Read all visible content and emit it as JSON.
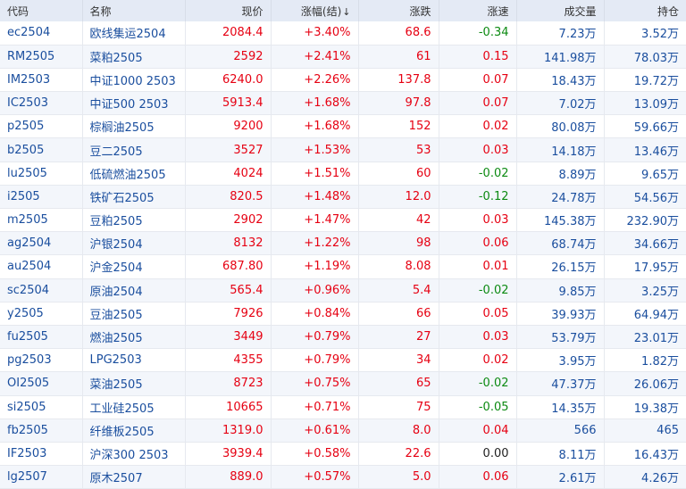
{
  "headers": {
    "code": "代码",
    "name": "名称",
    "price": "现价",
    "change_pct": "涨幅(结)",
    "change": "涨跌",
    "speed": "涨速",
    "volume": "成交量",
    "open_interest": "持仓"
  },
  "sort_icon": "↓",
  "colors": {
    "up": "#e60012",
    "down": "#0c8a12",
    "link": "#1a4e9e",
    "header_bg": "#e4eaf5"
  },
  "rows": [
    {
      "code": "ec2504",
      "name": "欧线集运2504",
      "price": "2084.4",
      "change_pct": "+3.40%",
      "change": "68.6",
      "speed": "-0.34",
      "speed_dir": "down",
      "volume": "7.23万",
      "open_interest": "3.52万"
    },
    {
      "code": "RM2505",
      "name": "菜粕2505",
      "price": "2592",
      "change_pct": "+2.41%",
      "change": "61",
      "speed": "0.15",
      "speed_dir": "up",
      "volume": "141.98万",
      "open_interest": "78.03万"
    },
    {
      "code": "IM2503",
      "name": "中证1000 2503",
      "price": "6240.0",
      "change_pct": "+2.26%",
      "change": "137.8",
      "speed": "0.07",
      "speed_dir": "up",
      "volume": "18.43万",
      "open_interest": "19.72万"
    },
    {
      "code": "IC2503",
      "name": "中证500 2503",
      "price": "5913.4",
      "change_pct": "+1.68%",
      "change": "97.8",
      "speed": "0.07",
      "speed_dir": "up",
      "volume": "7.02万",
      "open_interest": "13.09万"
    },
    {
      "code": "p2505",
      "name": "棕榈油2505",
      "price": "9200",
      "change_pct": "+1.68%",
      "change": "152",
      "speed": "0.02",
      "speed_dir": "up",
      "volume": "80.08万",
      "open_interest": "59.66万"
    },
    {
      "code": "b2505",
      "name": "豆二2505",
      "price": "3527",
      "change_pct": "+1.53%",
      "change": "53",
      "speed": "0.03",
      "speed_dir": "up",
      "volume": "14.18万",
      "open_interest": "13.46万"
    },
    {
      "code": "lu2505",
      "name": "低硫燃油2505",
      "price": "4024",
      "change_pct": "+1.51%",
      "change": "60",
      "speed": "-0.02",
      "speed_dir": "down",
      "volume": "8.89万",
      "open_interest": "9.65万"
    },
    {
      "code": "i2505",
      "name": "铁矿石2505",
      "price": "820.5",
      "change_pct": "+1.48%",
      "change": "12.0",
      "speed": "-0.12",
      "speed_dir": "down",
      "volume": "24.78万",
      "open_interest": "54.56万"
    },
    {
      "code": "m2505",
      "name": "豆粕2505",
      "price": "2902",
      "change_pct": "+1.47%",
      "change": "42",
      "speed": "0.03",
      "speed_dir": "up",
      "volume": "145.38万",
      "open_interest": "232.90万"
    },
    {
      "code": "ag2504",
      "name": "沪银2504",
      "price": "8132",
      "change_pct": "+1.22%",
      "change": "98",
      "speed": "0.06",
      "speed_dir": "up",
      "volume": "68.74万",
      "open_interest": "34.66万"
    },
    {
      "code": "au2504",
      "name": "沪金2504",
      "price": "687.80",
      "change_pct": "+1.19%",
      "change": "8.08",
      "speed": "0.01",
      "speed_dir": "up",
      "volume": "26.15万",
      "open_interest": "17.95万"
    },
    {
      "code": "sc2504",
      "name": "原油2504",
      "price": "565.4",
      "change_pct": "+0.96%",
      "change": "5.4",
      "speed": "-0.02",
      "speed_dir": "down",
      "volume": "9.85万",
      "open_interest": "3.25万"
    },
    {
      "code": "y2505",
      "name": "豆油2505",
      "price": "7926",
      "change_pct": "+0.84%",
      "change": "66",
      "speed": "0.05",
      "speed_dir": "up",
      "volume": "39.93万",
      "open_interest": "64.94万"
    },
    {
      "code": "fu2505",
      "name": "燃油2505",
      "price": "3449",
      "change_pct": "+0.79%",
      "change": "27",
      "speed": "0.03",
      "speed_dir": "up",
      "volume": "53.79万",
      "open_interest": "23.01万"
    },
    {
      "code": "pg2503",
      "name": "LPG2503",
      "price": "4355",
      "change_pct": "+0.79%",
      "change": "34",
      "speed": "0.02",
      "speed_dir": "up",
      "volume": "3.95万",
      "open_interest": "1.82万"
    },
    {
      "code": "OI2505",
      "name": "菜油2505",
      "price": "8723",
      "change_pct": "+0.75%",
      "change": "65",
      "speed": "-0.02",
      "speed_dir": "down",
      "volume": "47.37万",
      "open_interest": "26.06万"
    },
    {
      "code": "si2505",
      "name": "工业硅2505",
      "price": "10665",
      "change_pct": "+0.71%",
      "change": "75",
      "speed": "-0.05",
      "speed_dir": "down",
      "volume": "14.35万",
      "open_interest": "19.38万"
    },
    {
      "code": "fb2505",
      "name": "纤维板2505",
      "price": "1319.0",
      "change_pct": "+0.61%",
      "change": "8.0",
      "speed": "0.04",
      "speed_dir": "up",
      "volume": "566",
      "open_interest": "465"
    },
    {
      "code": "IF2503",
      "name": "沪深300 2503",
      "price": "3939.4",
      "change_pct": "+0.58%",
      "change": "22.6",
      "speed": "0.00",
      "speed_dir": "flat",
      "volume": "8.11万",
      "open_interest": "16.43万"
    },
    {
      "code": "lg2507",
      "name": "原木2507",
      "price": "889.0",
      "change_pct": "+0.57%",
      "change": "5.0",
      "speed": "0.06",
      "speed_dir": "up",
      "volume": "2.61万",
      "open_interest": "4.26万"
    }
  ]
}
